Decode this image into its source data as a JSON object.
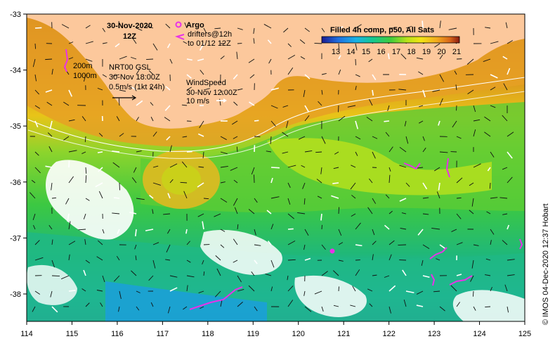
{
  "map": {
    "date": "30-Nov-2020",
    "time": "12Z",
    "legend": {
      "argo_label": "Argo",
      "drifters_label": "drifters@12h",
      "drifters_label2": "to 01/12 12Z"
    },
    "colorbar": {
      "title": "Filled 4h comp, p50, All Sats",
      "ticks": [
        "13",
        "14",
        "15",
        "16",
        "17",
        "18",
        "19",
        "20",
        "21"
      ],
      "colors": [
        "#2b2bb8",
        "#1e6fe0",
        "#19b3e6",
        "#14c890",
        "#3fcc3c",
        "#b8e21a",
        "#f2e414",
        "#f2a81e",
        "#d8661a",
        "#a82812"
      ]
    },
    "isobath_labels": [
      "200m",
      "1000m"
    ],
    "current_legend": {
      "line1": "NRT00 GSL",
      "line2": "30-Nov 18:00Z",
      "line3": "0.5m/s (1kt 24h)"
    },
    "wind_legend": {
      "line1": "WindSpeed",
      "line2": "30-Nov 12:00Z",
      "line3": "10 m/s"
    },
    "x_ticks": [
      "114",
      "115",
      "116",
      "117",
      "118",
      "119",
      "120",
      "121",
      "122",
      "123",
      "124",
      "125"
    ],
    "y_ticks": [
      "-33",
      "-34",
      "-35",
      "-36",
      "-37",
      "-38"
    ],
    "credit": "© IMOS 04-Dec-2020 12:37 Hobart",
    "land_color": "#fcc89c",
    "argo_color": "#e832e8"
  }
}
